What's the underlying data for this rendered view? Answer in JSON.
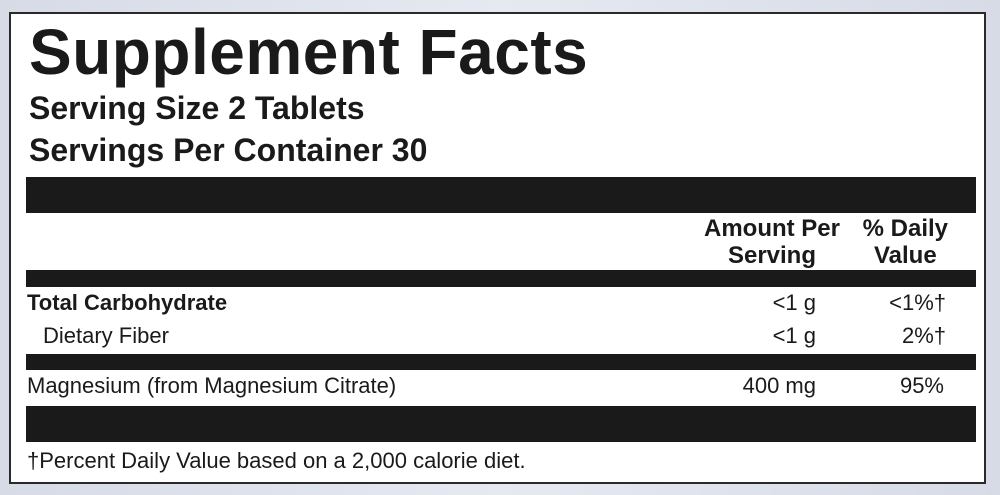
{
  "label": {
    "title": "Supplement Facts",
    "serving_size": "Serving Size 2 Tablets",
    "servings_per_container": "Servings Per Container 30",
    "columns": {
      "amount_line1": "Amount Per",
      "amount_line2": "Serving",
      "dv_line1": "% Daily",
      "dv_line2": "Value"
    },
    "rows": [
      {
        "name": "Total Carbohydrate",
        "amount": "<1 g",
        "dv": "<1%†"
      },
      {
        "name": "Dietary Fiber",
        "amount": "<1 g",
        "dv": "2%†"
      },
      {
        "name": "Magnesium (from Magnesium Citrate)",
        "amount": "400 mg",
        "dv": "95%"
      }
    ],
    "footnote": "†Percent Daily Value based on a 2,000 calorie diet."
  }
}
